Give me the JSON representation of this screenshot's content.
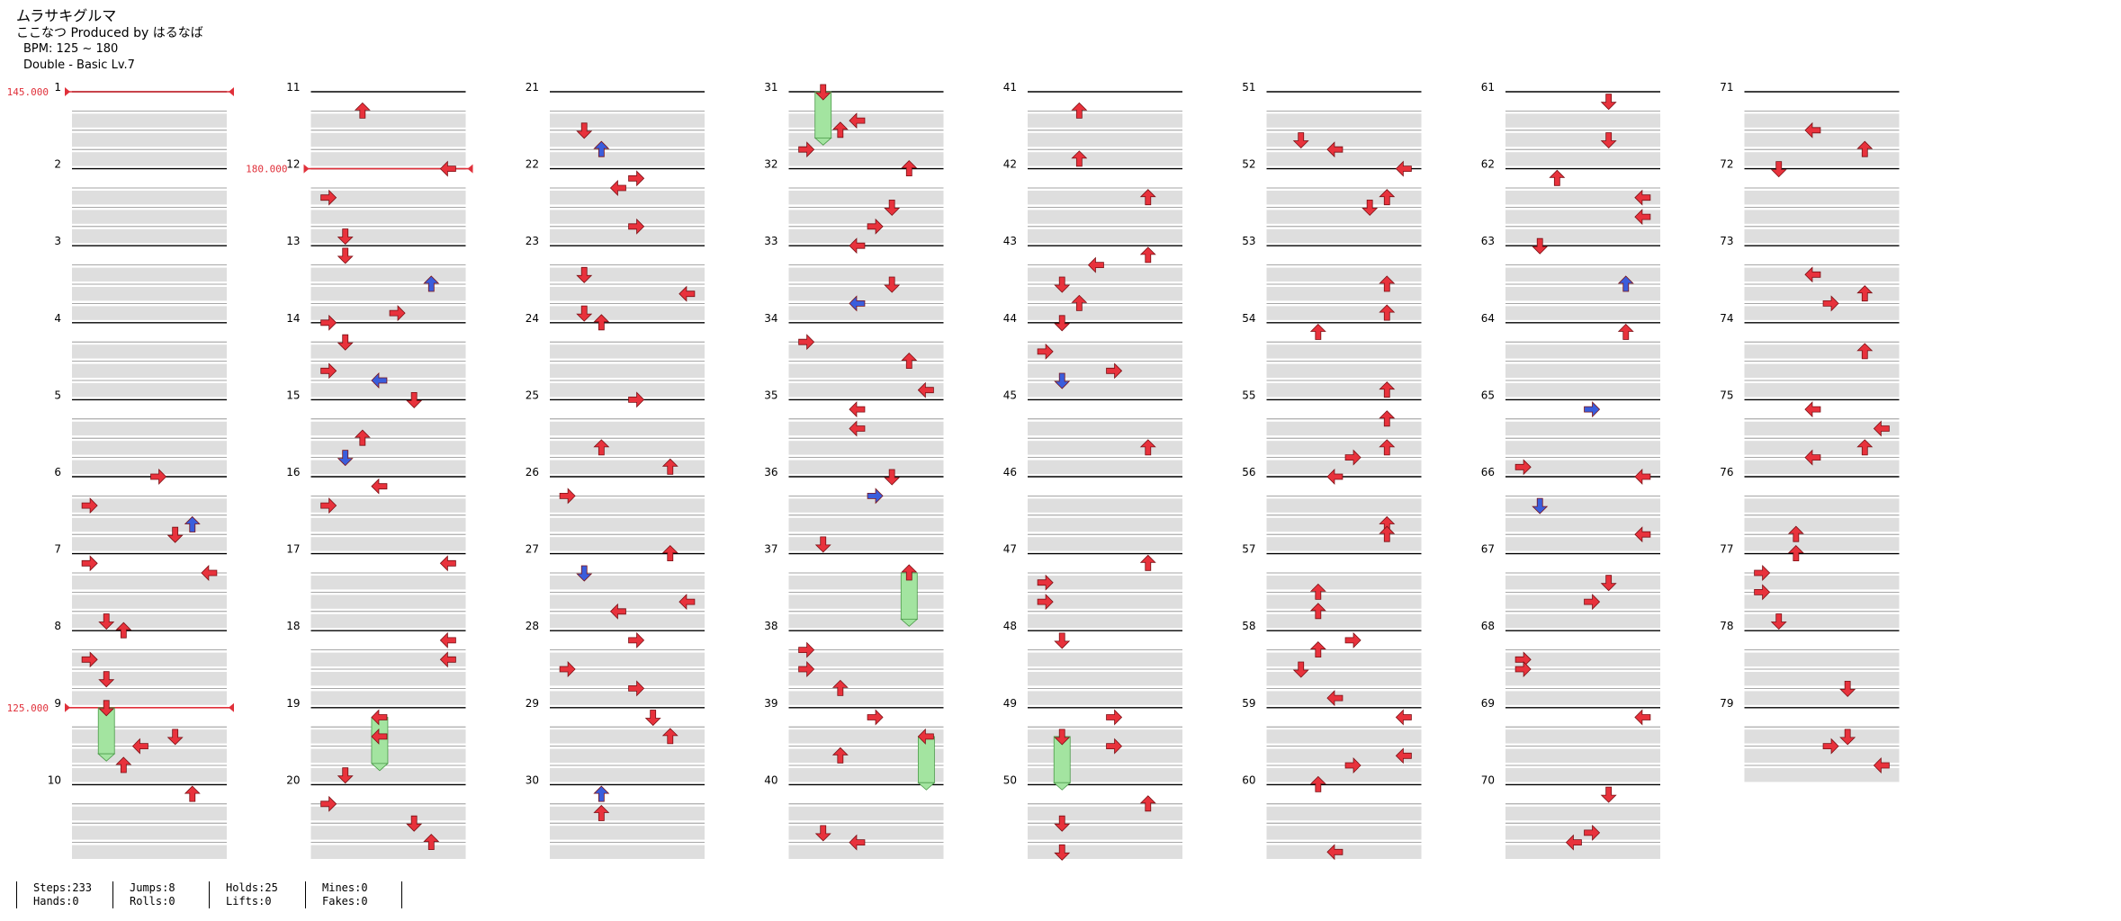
{
  "header": {
    "title": "ムラサキグルマ",
    "subtitle": "ここなつ Produced by はるなば",
    "bpm": "BPM: 125 ~ 180",
    "difficulty": "Double - Basic Lv.7"
  },
  "colors": {
    "red_arrow": "#e8323c",
    "blue_arrow": "#3a5ddc",
    "hold": "#a3e4a0",
    "bpm_line": "#e0303a"
  },
  "measures": [
    1,
    2,
    3,
    4,
    5,
    6,
    7,
    8,
    9,
    10,
    11,
    12,
    13,
    14,
    15,
    16,
    17,
    18,
    19,
    20,
    21,
    22,
    23,
    24,
    25,
    26,
    27,
    28,
    29,
    30,
    31,
    32,
    33,
    34,
    35,
    36,
    37,
    38,
    39,
    40,
    41,
    42,
    43,
    44,
    45,
    46,
    47,
    48,
    49,
    50,
    51,
    52,
    53,
    54,
    55,
    56,
    57,
    58,
    59,
    60,
    61,
    62,
    63,
    64,
    65,
    66,
    67,
    68,
    69,
    70,
    71,
    72,
    73,
    74,
    75,
    76,
    77,
    78,
    79
  ],
  "bpm_changes": [
    {
      "measure": 1,
      "label": "145.000"
    },
    {
      "measure": 12,
      "label": "180.000"
    },
    {
      "measure": 9,
      "label": "125.000"
    }
  ],
  "stats": {
    "steps": "Steps:233",
    "hands": "Hands:0",
    "jumps": "Jumps:8",
    "rolls": "Rolls:0",
    "holds": "Holds:25",
    "lifts": "Lifts:0",
    "mines": "Mines:0",
    "fakes": "Fakes:0"
  }
}
